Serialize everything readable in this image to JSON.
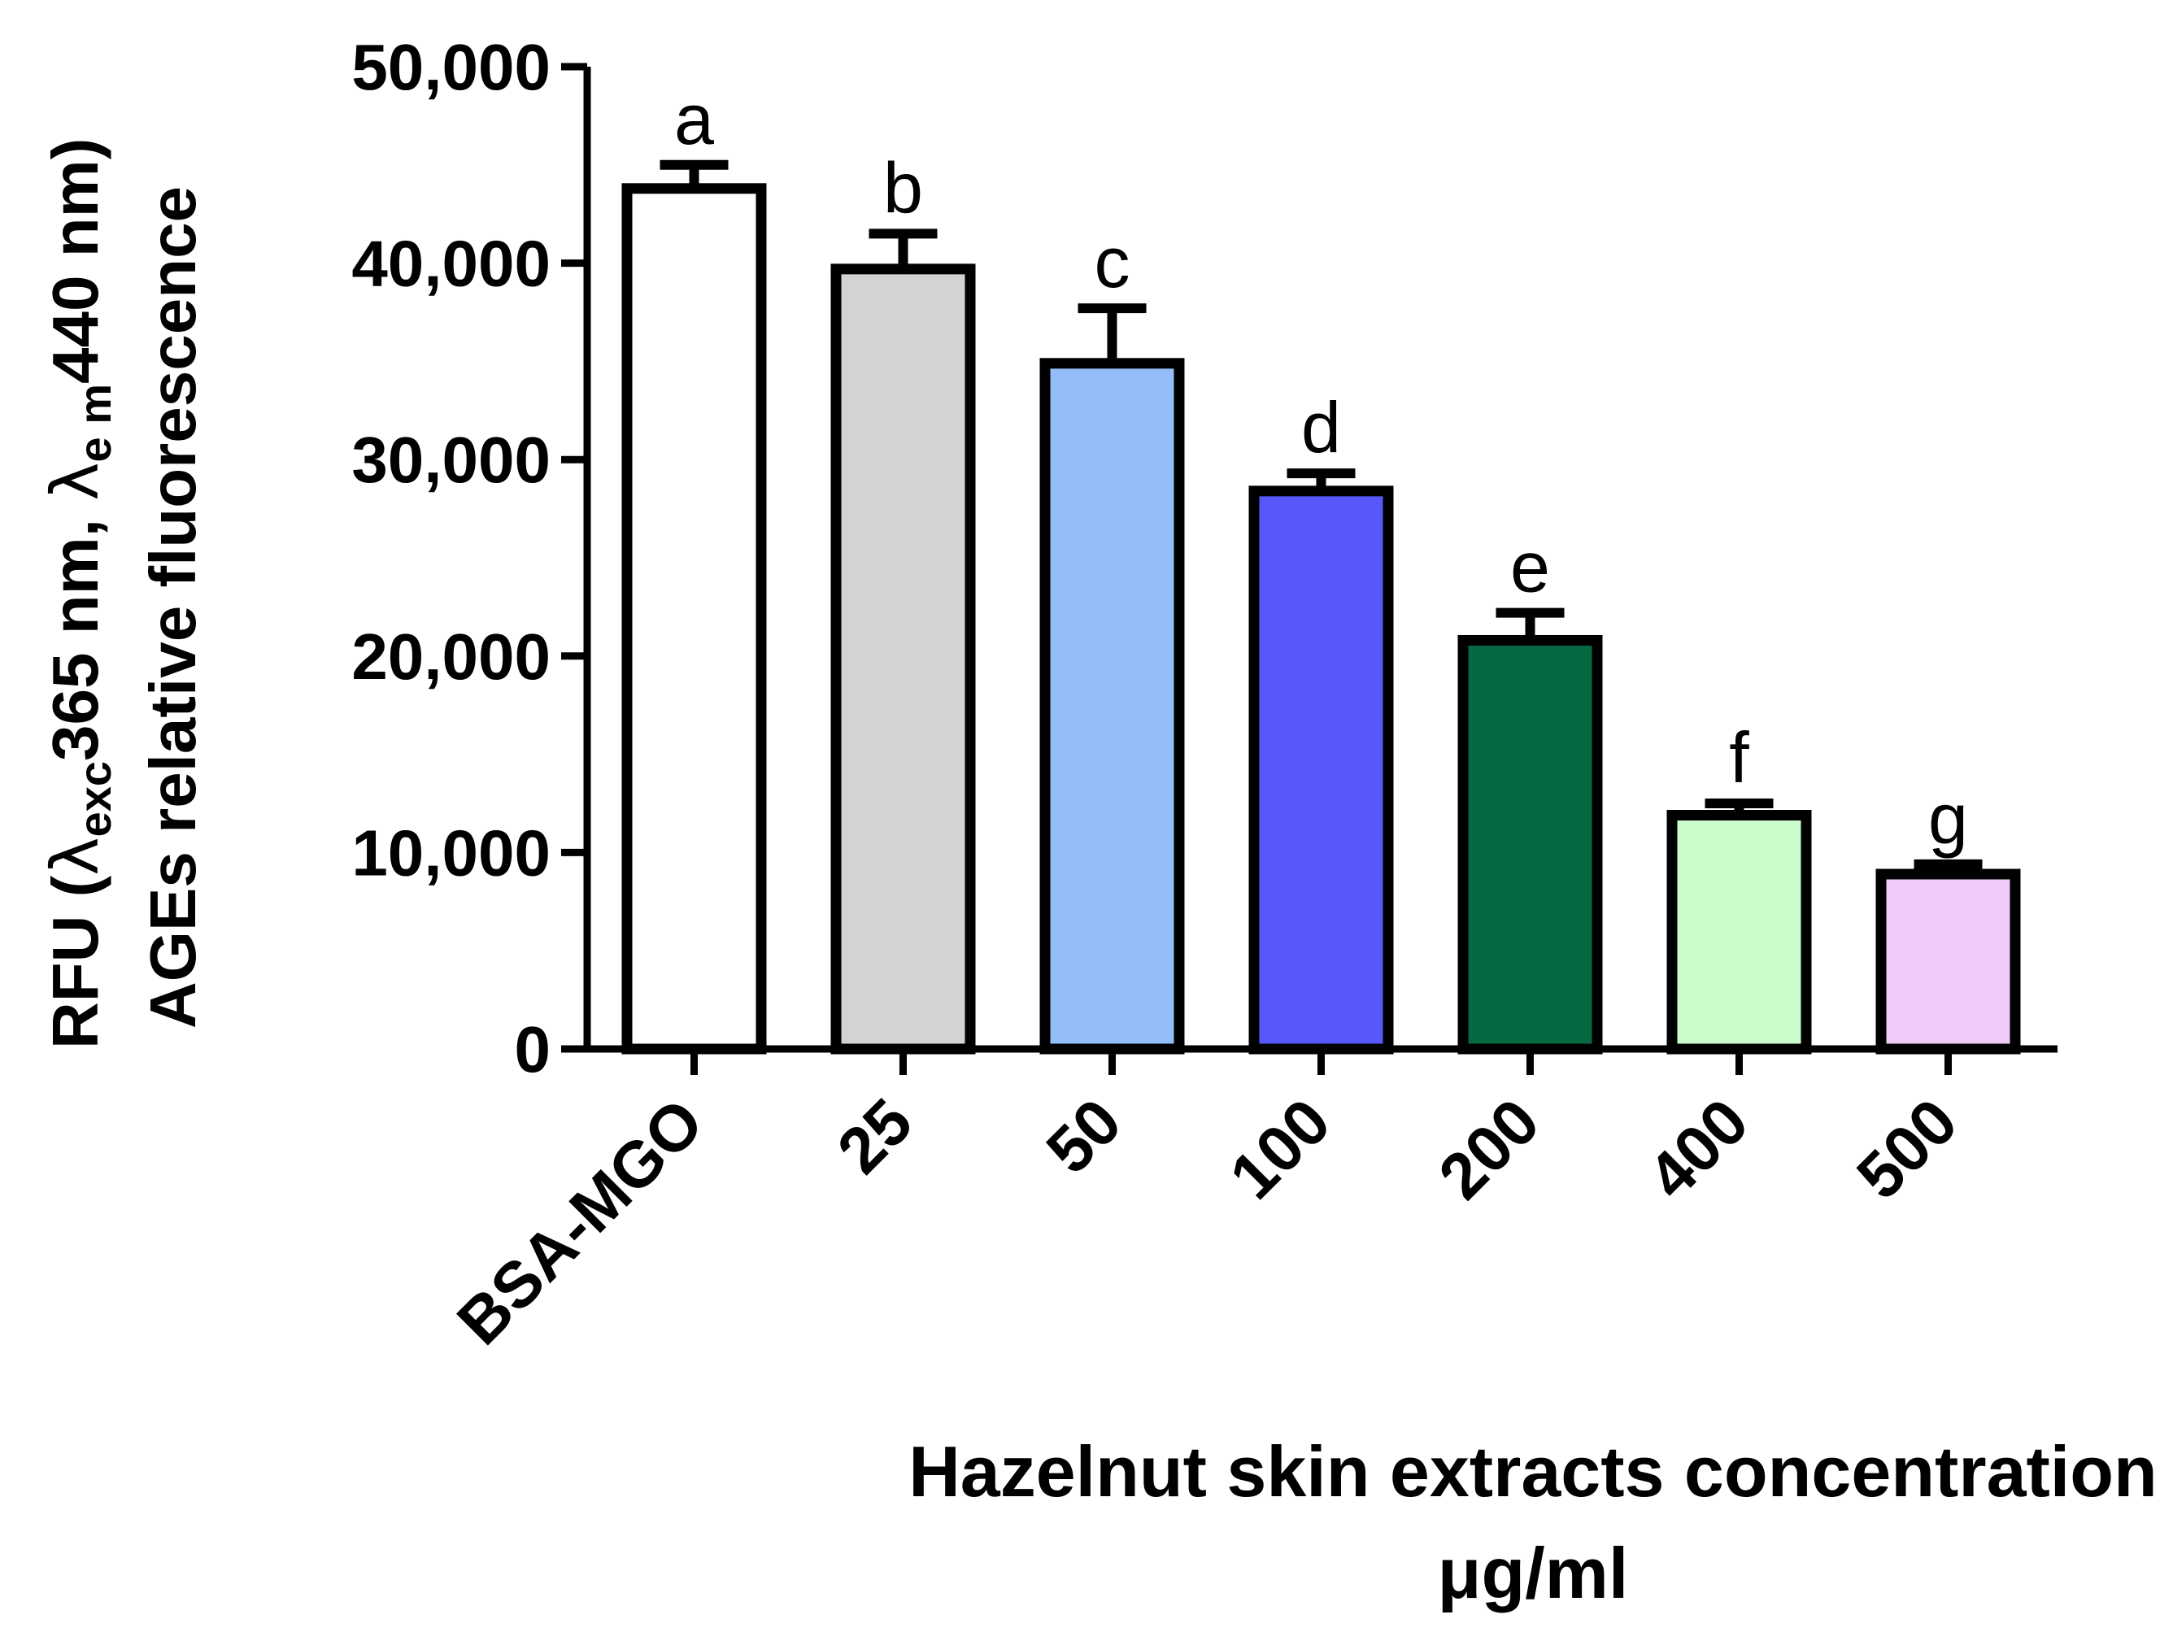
{
  "chart_data": {
    "type": "bar",
    "categories": [
      "BSA-MGO",
      "25",
      "50",
      "100",
      "200",
      "400",
      "500"
    ],
    "values": [
      43800,
      39700,
      34900,
      28400,
      20800,
      11900,
      8900
    ],
    "errors": [
      1200,
      1800,
      2800,
      900,
      1400,
      600,
      500
    ],
    "significance_letters": [
      "a",
      "b",
      "c",
      "d",
      "e",
      "f",
      "g"
    ],
    "colors": [
      "#ffffff",
      "#d3d3d3",
      "#92bdf7",
      "#5858fa",
      "#076941",
      "#cbfccb",
      "#eeccf7"
    ],
    "ylim": [
      0,
      50000
    ],
    "yticks": [
      0,
      10000,
      20000,
      30000,
      40000,
      50000
    ],
    "ytick_labels": [
      "0",
      "10,000",
      "20,000",
      "30,000",
      "40,000",
      "50,000"
    ],
    "ylabel": {
      "line1_prefix": "RFU (",
      "lambda1": "λ",
      "sub1": "exc",
      "mid1": "365 nm, ",
      "lambda2": "λ",
      "sub2": "e m",
      "mid2": "440 nm)",
      "line2": "AGEs relative fluorescence"
    },
    "xlabel": "Hazelnut skin extracts concentration",
    "xlabel_unit": "μg/ml"
  }
}
